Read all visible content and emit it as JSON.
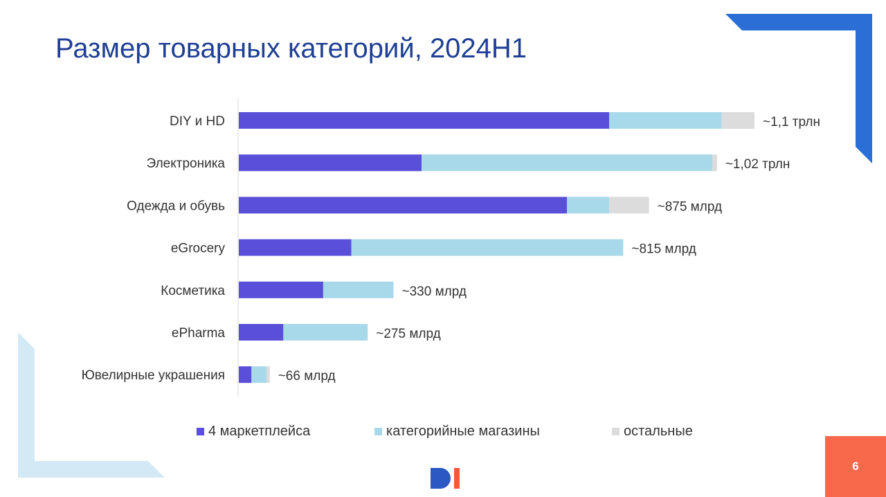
{
  "slide": {
    "title": "Размер товарных категорий, 2024H1",
    "page_number": "6",
    "colors": {
      "title": "#1f3f94",
      "accent_blue": "#2b6fd6",
      "light_blue_frame": "#d3e9f5",
      "page_box": "#f8694c",
      "logo_blue": "#2b59c3",
      "logo_red": "#f05a3c"
    }
  },
  "chart_data": {
    "type": "bar",
    "orientation": "horizontal",
    "stacked": true,
    "title": "Размер товарных категорий, 2024H1",
    "xlabel": "",
    "ylabel": "",
    "xlim": [
      0,
      1.1
    ],
    "grid": false,
    "legend_position": "bottom",
    "categories": [
      "DIY и HD",
      "Электроника",
      "Одежда и обувь",
      "eGrocery",
      "Косметика",
      "ePharma",
      "Ювелирные украшения"
    ],
    "series": [
      {
        "name": "4 маркетплейса",
        "color": "#5a4fd8",
        "values": [
          0.79,
          0.39,
          0.7,
          0.24,
          0.18,
          0.095,
          0.027
        ]
      },
      {
        "name": "категорийные магазины",
        "color": "#a8d9ea",
        "values": [
          0.24,
          0.62,
          0.09,
          0.58,
          0.15,
          0.18,
          0.032
        ]
      },
      {
        "name": "остальные",
        "color": "#dcdcdc",
        "values": [
          0.07,
          0.01,
          0.085,
          0.0,
          0.0,
          0.0,
          0.007
        ]
      }
    ],
    "totals": [
      1.1,
      1.02,
      0.875,
      0.815,
      0.33,
      0.275,
      0.066
    ],
    "data_labels": [
      "~1,1 трлн",
      "~1,02 трлн",
      "~875 млрд",
      "~815 млрд",
      "~330 млрд",
      "~275 млрд",
      "~66 млрд"
    ]
  }
}
